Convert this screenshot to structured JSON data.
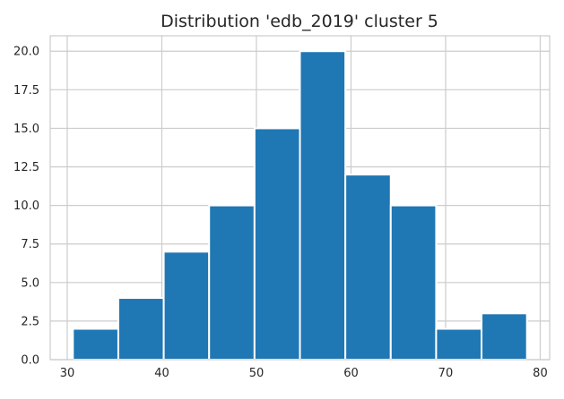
{
  "chart_data": {
    "type": "bar",
    "title": "Distribution 'edb_2019' cluster 5",
    "xlabel": "",
    "ylabel": "",
    "bins": [
      {
        "x0": 30.6,
        "x1": 35.4,
        "count": 2
      },
      {
        "x0": 35.4,
        "x1": 40.2,
        "count": 4
      },
      {
        "x0": 40.2,
        "x1": 45.0,
        "count": 7
      },
      {
        "x0": 45.0,
        "x1": 49.8,
        "count": 10
      },
      {
        "x0": 49.8,
        "x1": 54.6,
        "count": 15
      },
      {
        "x0": 54.6,
        "x1": 59.4,
        "count": 20
      },
      {
        "x0": 59.4,
        "x1": 64.2,
        "count": 12
      },
      {
        "x0": 64.2,
        "x1": 69.0,
        "count": 10
      },
      {
        "x0": 69.0,
        "x1": 73.8,
        "count": 2
      },
      {
        "x0": 73.8,
        "x1": 78.6,
        "count": 3
      }
    ],
    "xlim": [
      28.2,
      81.0
    ],
    "ylim": [
      0,
      21
    ],
    "xticks": [
      30,
      40,
      50,
      60,
      70,
      80
    ],
    "xtick_labels": [
      "30",
      "40",
      "50",
      "60",
      "70",
      "80"
    ],
    "yticks": [
      0,
      2.5,
      5,
      7.5,
      10,
      12.5,
      15,
      17.5,
      20
    ],
    "ytick_labels": [
      "0.0",
      "2.5",
      "5.0",
      "7.5",
      "10.0",
      "12.5",
      "15.0",
      "17.5",
      "20.0"
    ],
    "grid": true,
    "legend": "none",
    "bar_color": "#1f77b4",
    "grid_color": "#cccccc"
  }
}
